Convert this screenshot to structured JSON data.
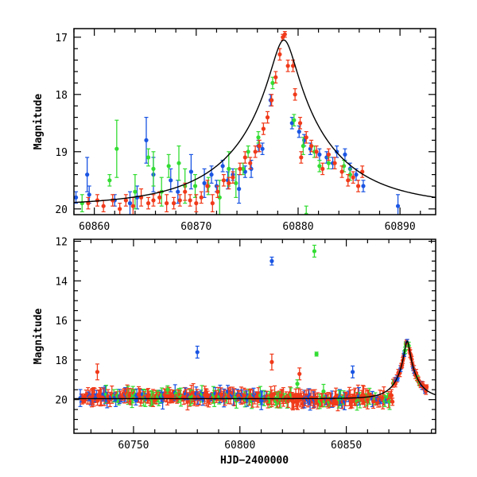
{
  "chart_data": [
    {
      "type": "scatter",
      "panel": "top",
      "title": "",
      "xlabel": "",
      "ylabel": "Magnitude",
      "xlim": [
        60858,
        60893.5
      ],
      "ylim": [
        20.1,
        16.85
      ],
      "y_inverted": true,
      "xticks": [
        60860,
        60870,
        60880,
        60890
      ],
      "yticks": [
        17,
        18,
        19,
        20
      ],
      "colors": {
        "blue": "#1a55e3",
        "green": "#33dd33",
        "red": "#f03a1a",
        "model": "#000000"
      },
      "model_curve": {
        "peak_x": 60878.6,
        "peak_mag": 17.05,
        "baseline_mag": 19.95,
        "description": "single-lens microlensing fit"
      },
      "series": [
        {
          "color": "blue",
          "points": [
            [
              60858.2,
              19.8,
              0.1
            ],
            [
              60859.3,
              19.4,
              0.3
            ],
            [
              60859.5,
              19.75,
              0.15
            ],
            [
              60862,
              19.85,
              0.1
            ],
            [
              60863.5,
              19.9,
              0.2
            ],
            [
              60864.2,
              19.8,
              0.2
            ],
            [
              60865.1,
              18.8,
              0.4
            ],
            [
              60865.8,
              19.4,
              0.3
            ],
            [
              60867.5,
              19.5,
              0.2
            ],
            [
              60868.2,
              19.7,
              0.2
            ],
            [
              60869.5,
              19.35,
              0.3
            ],
            [
              60870.8,
              19.55,
              0.25
            ],
            [
              60871.5,
              19.4,
              0.15
            ],
            [
              60872,
              19.6,
              0.1
            ],
            [
              60872.6,
              19.25,
              0.1
            ],
            [
              60873.1,
              19.5,
              0.15
            ],
            [
              60873.6,
              19.4,
              0.1
            ],
            [
              60874.2,
              19.65,
              0.25
            ],
            [
              60874.8,
              19.35,
              0.1
            ],
            [
              60875.4,
              19.3,
              0.15
            ],
            [
              60876.1,
              18.9,
              0.1
            ],
            [
              60876.5,
              18.95,
              0.1
            ],
            [
              60877.3,
              18.1,
              0.1
            ],
            [
              60879.4,
              18.5,
              0.1
            ],
            [
              60880.1,
              18.65,
              0.1
            ],
            [
              60880.6,
              18.8,
              0.1
            ],
            [
              60881.2,
              18.95,
              0.1
            ],
            [
              60882.1,
              19.05,
              0.1
            ],
            [
              60882.8,
              19.1,
              0.1
            ],
            [
              60883.4,
              19.2,
              0.1
            ],
            [
              60883.8,
              19.0,
              0.1
            ],
            [
              60884.6,
              19.05,
              0.1
            ],
            [
              60885.1,
              19.3,
              0.1
            ],
            [
              60885.7,
              19.4,
              0.1
            ],
            [
              60886.4,
              19.6,
              0.1
            ],
            [
              60889.8,
              19.95,
              0.2
            ]
          ]
        },
        {
          "color": "green",
          "points": [
            [
              60858.8,
              19.9,
              0.15
            ],
            [
              60861.5,
              19.5,
              0.1
            ],
            [
              60862.2,
              18.95,
              0.5
            ],
            [
              60864,
              19.7,
              0.3
            ],
            [
              60865.3,
              19.1,
              0.15
            ],
            [
              60865.8,
              19.3,
              0.3
            ],
            [
              60866.6,
              19.7,
              0.25
            ],
            [
              60867.3,
              19.25,
              0.2
            ],
            [
              60868.3,
              19.2,
              0.3
            ],
            [
              60868.9,
              19.6,
              0.3
            ],
            [
              60869.9,
              19.6,
              0.2
            ],
            [
              60871.2,
              19.6,
              0.15
            ],
            [
              60872.3,
              19.8,
              0.3
            ],
            [
              60873.2,
              19.3,
              0.3
            ],
            [
              60873.9,
              19.55,
              0.25
            ],
            [
              60874.6,
              19.3,
              0.1
            ],
            [
              60875.1,
              19.0,
              0.1
            ],
            [
              60876.1,
              18.75,
              0.1
            ],
            [
              60877.5,
              17.8,
              0.1
            ],
            [
              60879.6,
              18.45,
              0.1
            ],
            [
              60880.5,
              18.9,
              0.15
            ],
            [
              60881.6,
              19.0,
              0.1
            ],
            [
              60882.1,
              19.25,
              0.1
            ],
            [
              60883,
              19.2,
              0.1
            ],
            [
              60884.5,
              19.25,
              0.1
            ],
            [
              60885.1,
              19.4,
              0.1
            ],
            [
              60880.8,
              20.1,
              0.15
            ]
          ]
        },
        {
          "color": "red",
          "points": [
            [
              60859.4,
              19.9,
              0.1
            ],
            [
              60860.3,
              19.85,
              0.1
            ],
            [
              60860.9,
              19.95,
              0.1
            ],
            [
              60861.8,
              19.85,
              0.1
            ],
            [
              60862.5,
              20.0,
              0.1
            ],
            [
              60863.1,
              19.85,
              0.1
            ],
            [
              60863.8,
              19.95,
              0.15
            ],
            [
              60864.6,
              19.8,
              0.15
            ],
            [
              60865.3,
              19.9,
              0.1
            ],
            [
              60865.8,
              19.85,
              0.1
            ],
            [
              60866.4,
              19.8,
              0.1
            ],
            [
              60867.1,
              19.9,
              0.15
            ],
            [
              60867.8,
              19.9,
              0.1
            ],
            [
              60868.4,
              19.85,
              0.1
            ],
            [
              60868.9,
              19.7,
              0.15
            ],
            [
              60869.4,
              19.85,
              0.1
            ],
            [
              60870,
              19.9,
              0.15
            ],
            [
              60870.5,
              19.8,
              0.1
            ],
            [
              60871.1,
              19.6,
              0.1
            ],
            [
              60871.6,
              19.9,
              0.15
            ],
            [
              60872.1,
              19.7,
              0.1
            ],
            [
              60872.7,
              19.5,
              0.1
            ],
            [
              60873.2,
              19.55,
              0.1
            ],
            [
              60873.6,
              19.45,
              0.1
            ],
            [
              60874.3,
              19.3,
              0.1
            ],
            [
              60874.8,
              19.1,
              0.1
            ],
            [
              60875.3,
              19.2,
              0.1
            ],
            [
              60875.8,
              19.0,
              0.1
            ],
            [
              60876.2,
              18.9,
              0.1
            ],
            [
              60876.6,
              18.6,
              0.1
            ],
            [
              60877,
              18.4,
              0.1
            ],
            [
              60877.4,
              18.1,
              0.1
            ],
            [
              60877.8,
              17.7,
              0.1
            ],
            [
              60878.2,
              17.3,
              0.1
            ],
            [
              60878.5,
              17.0,
              0.05
            ],
            [
              60878.7,
              16.95,
              0.05
            ],
            [
              60879,
              17.5,
              0.1
            ],
            [
              60879.5,
              17.5,
              0.1
            ],
            [
              60879.7,
              18.0,
              0.1
            ],
            [
              60880.2,
              18.5,
              0.1
            ],
            [
              60880.8,
              18.75,
              0.1
            ],
            [
              60881.3,
              18.9,
              0.1
            ],
            [
              60881.8,
              19.0,
              0.1
            ],
            [
              60882.4,
              19.3,
              0.1
            ],
            [
              60883,
              19.05,
              0.1
            ],
            [
              60883.6,
              19.2,
              0.1
            ],
            [
              60884.3,
              19.35,
              0.1
            ],
            [
              60884.9,
              19.5,
              0.1
            ],
            [
              60885.4,
              19.45,
              0.1
            ],
            [
              60885.9,
              19.6,
              0.1
            ],
            [
              60886.3,
              19.35,
              0.1
            ],
            [
              60880.3,
              19.1,
              0.1
            ]
          ]
        }
      ]
    },
    {
      "type": "scatter",
      "panel": "bottom",
      "title": "",
      "xlabel": "HJD−2400000",
      "ylabel": "Magnitude",
      "xlim": [
        60722,
        60892
      ],
      "ylim": [
        21.7,
        11.9
      ],
      "y_inverted": true,
      "xticks": [
        60750,
        60800,
        60850
      ],
      "yticks": [
        12,
        14,
        16,
        18,
        20
      ],
      "colors": {
        "blue": "#1a55e3",
        "green": "#33dd33",
        "red": "#f03a1a",
        "model": "#000000"
      },
      "model_curve": {
        "peak_x": 60878.6,
        "peak_mag": 17.05,
        "baseline_mag": 19.95,
        "description": "single-lens microlensing fit"
      },
      "outliers": [
        {
          "color": "blue",
          "x": 60815,
          "y": 13.0,
          "err": 0.2
        },
        {
          "color": "green",
          "x": 60835,
          "y": 12.5,
          "err": 0.3
        },
        {
          "color": "blue",
          "x": 60780,
          "y": 17.6,
          "err": 0.3
        },
        {
          "color": "red",
          "x": 60733,
          "y": 18.6,
          "err": 0.4
        },
        {
          "color": "red",
          "x": 60815,
          "y": 18.1,
          "err": 0.4
        },
        {
          "color": "red",
          "x": 60828,
          "y": 18.7,
          "err": 0.3
        },
        {
          "color": "green",
          "x": 60836,
          "y": 17.7,
          "err": 0.1
        },
        {
          "color": "blue",
          "x": 60853,
          "y": 18.6,
          "err": 0.3
        },
        {
          "color": "green",
          "x": 60766,
          "y": 19.5,
          "err": 0.2
        },
        {
          "color": "green",
          "x": 60827,
          "y": 19.2,
          "err": 0.2
        }
      ],
      "baseline_note": "dense baseline of red, blue and green measurements near magnitude 19.9 between 60725 and 60875, followed by the peak of the event near 60878"
    }
  ],
  "axis_titles": {
    "y_top": "Magnitude",
    "y_bottom": "Magnitude",
    "x_bottom": "HJD−2400000"
  }
}
